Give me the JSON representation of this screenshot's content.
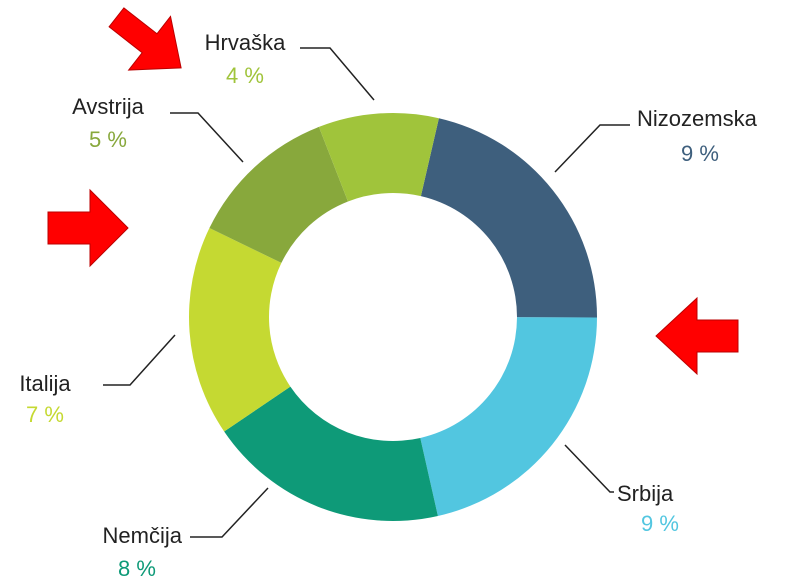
{
  "chart_data": {
    "type": "donut",
    "categories": [
      "Nizozemska",
      "Srbija",
      "Nemčija",
      "Italija",
      "Avstrija",
      "Hrvaška"
    ],
    "values": [
      9,
      9,
      8,
      7,
      5,
      4
    ],
    "value_labels": [
      "9 %",
      "9 %",
      "8 %",
      "7 %",
      "5 %",
      "4 %"
    ],
    "colors": [
      "#3e5f7d",
      "#52c6e0",
      "#0e9a78",
      "#c5d932",
      "#88a83c",
      "#a0c43b"
    ]
  }
}
